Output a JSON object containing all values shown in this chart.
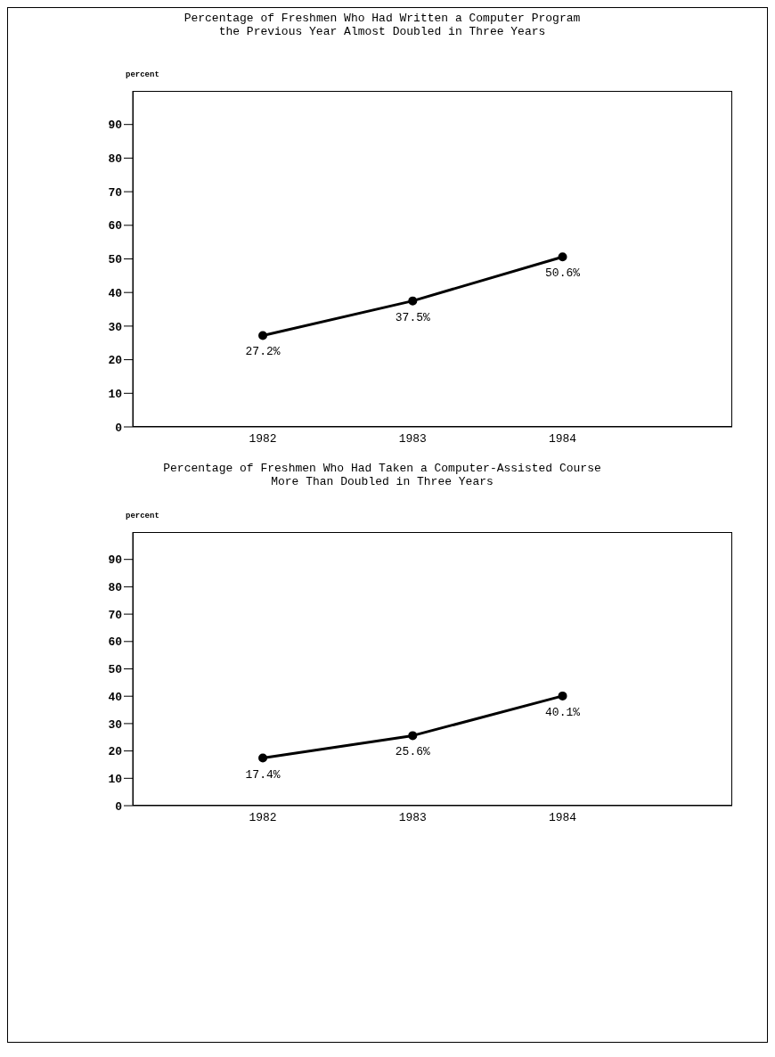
{
  "chart_data": [
    {
      "type": "line",
      "title": "Percentage of Freshmen Who Had Written a Computer Program\nthe Previous Year Almost Doubled in Three Years",
      "ylabel": "percent",
      "categories": [
        "1982",
        "1983",
        "1984"
      ],
      "series": [
        {
          "color": "#000000",
          "values": [
            27.2,
            37.5,
            50.6
          ],
          "value_labels": [
            "27.2%",
            "37.5%",
            "50.6%"
          ]
        }
      ],
      "ylim": [
        0,
        100
      ],
      "yticks": [
        0,
        10,
        20,
        30,
        40,
        50,
        60,
        70,
        80,
        90
      ],
      "marker": "circle",
      "line_style": "solid",
      "grid": false
    },
    {
      "type": "line",
      "title": "Percentage of Freshmen Who Had Taken a Computer-Assisted Course\nMore Than Doubled in Three Years",
      "ylabel": "percent",
      "categories": [
        "1982",
        "1983",
        "1984"
      ],
      "series": [
        {
          "color": "#000000",
          "values": [
            17.4,
            25.6,
            40.1
          ],
          "value_labels": [
            "17.4%",
            "25.6%",
            "40.1%"
          ]
        }
      ],
      "ylim": [
        0,
        100
      ],
      "yticks": [
        0,
        10,
        20,
        30,
        40,
        50,
        60,
        70,
        80,
        90
      ],
      "marker": "circle",
      "line_style": "solid",
      "grid": false
    }
  ]
}
